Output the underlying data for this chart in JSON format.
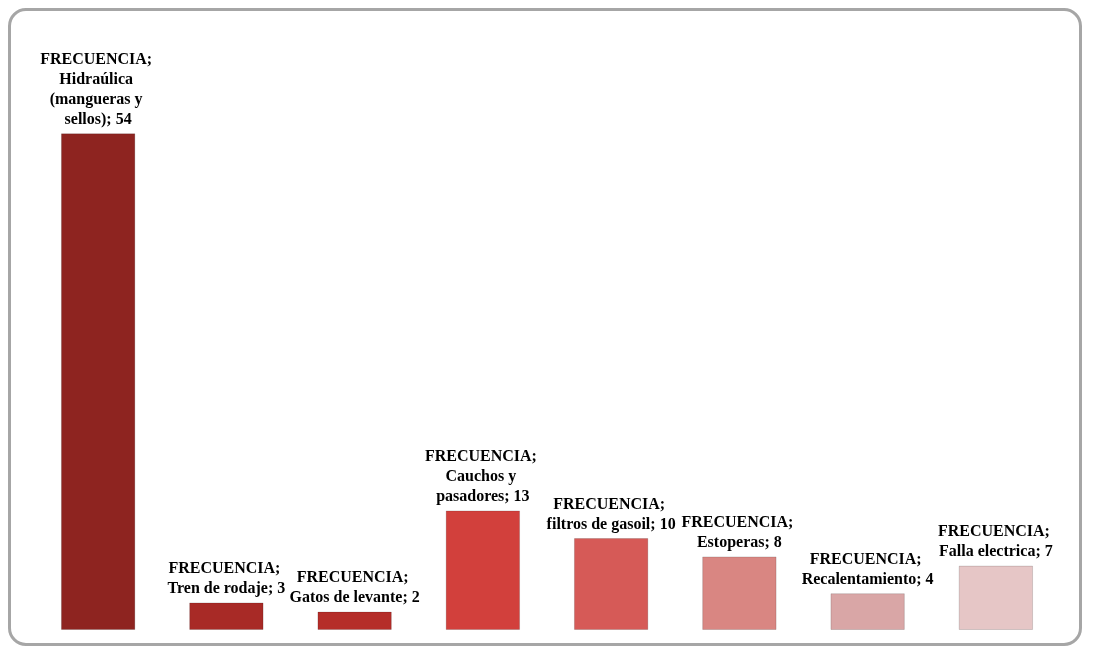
{
  "chart_data": {
    "type": "bar",
    "categories": [
      null,
      null,
      null,
      null,
      null,
      null,
      null,
      null
    ],
    "series": [
      {
        "colors": [
          "#8e2420",
          "#a82a26",
          "#b52d29",
          "#d2403c",
          "#d65a57",
          "#d98682",
          "#d9a6a6",
          "#e6c6c6"
        ],
        "values": [
          54,
          3,
          2,
          13,
          10,
          8,
          4,
          7
        ],
        "value_labels": [
          "FRECUENCIA; Hidraúlica (mangueras y sellos); 54",
          "FRECUENCIA; Tren de rodaje; 3",
          "FRECUENCIA; Gatos de levante; 2",
          "FRECUENCIA; Cauchos y pasadores; 13",
          "FRECUENCIA; filtros de gasoil; 10",
          "FRECUENCIA; Estoperas; 8",
          "FRECUENCIA; Recalentamiento; 4",
          "FRECUENCIA; Falla electrica; 7"
        ]
      }
    ],
    "tick_labels": false,
    "grid": false
  }
}
